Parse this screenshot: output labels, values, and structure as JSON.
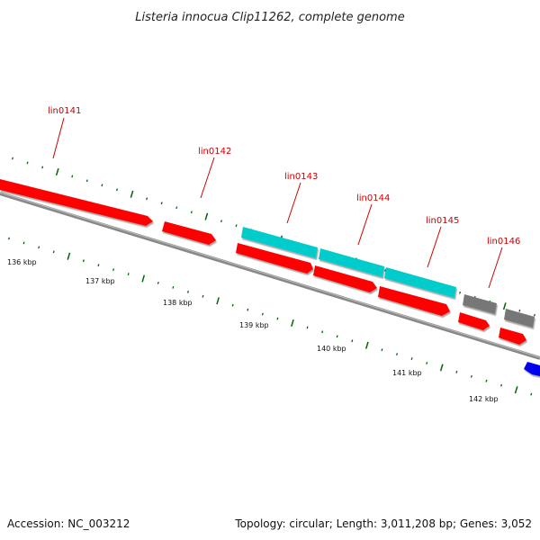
{
  "header": {
    "title": "Listeria innocua Clip11262, complete genome"
  },
  "footer": {
    "accession": "Accession: NC_003212",
    "summary": "Topology: circular; Length: 3,011,208 bp; Genes: 3,052"
  },
  "scale_labels": [
    "136 kbp",
    "137 kbp",
    "138 kbp",
    "139 kbp",
    "140 kbp",
    "141 kbp",
    "142 kbp"
  ],
  "gene_labels": [
    "lin0141",
    "lin0142",
    "lin0143",
    "lin0144",
    "lin0145",
    "lin0146"
  ],
  "colors": {
    "gene_forward": "#ff0000",
    "gene_cyan": "#00cccc",
    "gene_grey": "#777777",
    "gene_blue": "#0000ee",
    "backbone": "#888888",
    "tick": "#006600",
    "label": "#cc0000"
  }
}
